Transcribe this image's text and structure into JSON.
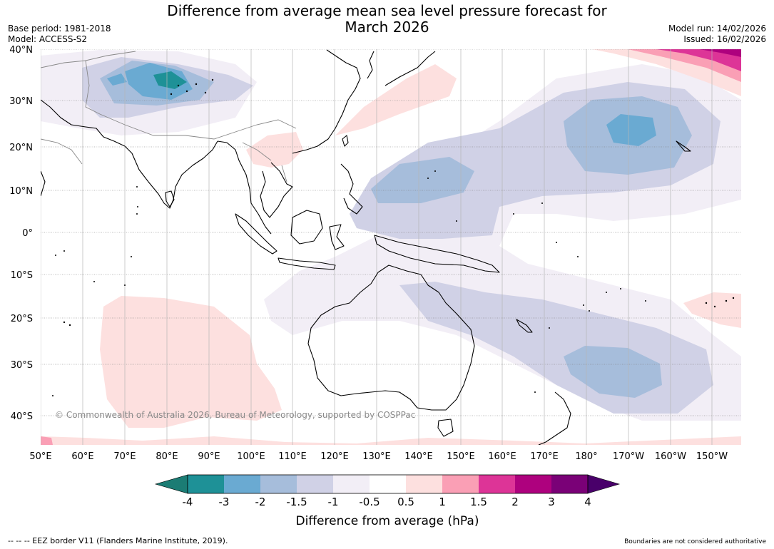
{
  "title_line1": "Difference from average mean sea level pressure forecast for",
  "title_line2": "March 2026",
  "base_period": "Base period: 1981-2018",
  "model": "Model: ACCESS-S2",
  "model_run": "Model run: 14/02/2026",
  "issued": "Issued: 16/02/2026",
  "copyright": "© Commonwealth of Australia 2026, Bureau of Meteorology, supported by COSPPac",
  "lat_labels": [
    "40°N",
    "30°N",
    "20°N",
    "10°N",
    "0°",
    "10°S",
    "20°S",
    "30°S",
    "40°S"
  ],
  "lon_labels": [
    "50°E",
    "60°E",
    "70°E",
    "80°E",
    "90°E",
    "100°E",
    "110°E",
    "120°E",
    "130°E",
    "140°E",
    "150°E",
    "160°E",
    "170°E",
    "180°",
    "170°W",
    "160°W",
    "150°W"
  ],
  "colorbar": {
    "title": "Difference from average (hPa)",
    "labels": [
      "-4",
      "-3",
      "-2",
      "-1.5",
      "-1",
      "-0.5",
      "0.5",
      "1",
      "1.5",
      "2",
      "3",
      "4"
    ],
    "colors": [
      "#1b7c74",
      "#1e9197",
      "#6aaad2",
      "#a6bddb",
      "#d0d1e6",
      "#f2eef6",
      "#ffffff",
      "#fde0df",
      "#fa9fb5",
      "#dd3497",
      "#ae017e",
      "#7a0177",
      "#49006a"
    ]
  },
  "footer_left": "--  --  -- EEZ border V11 (Flanders Marine Institute, 2019).",
  "footer_right": "Boundaries are not considered authoritative"
}
